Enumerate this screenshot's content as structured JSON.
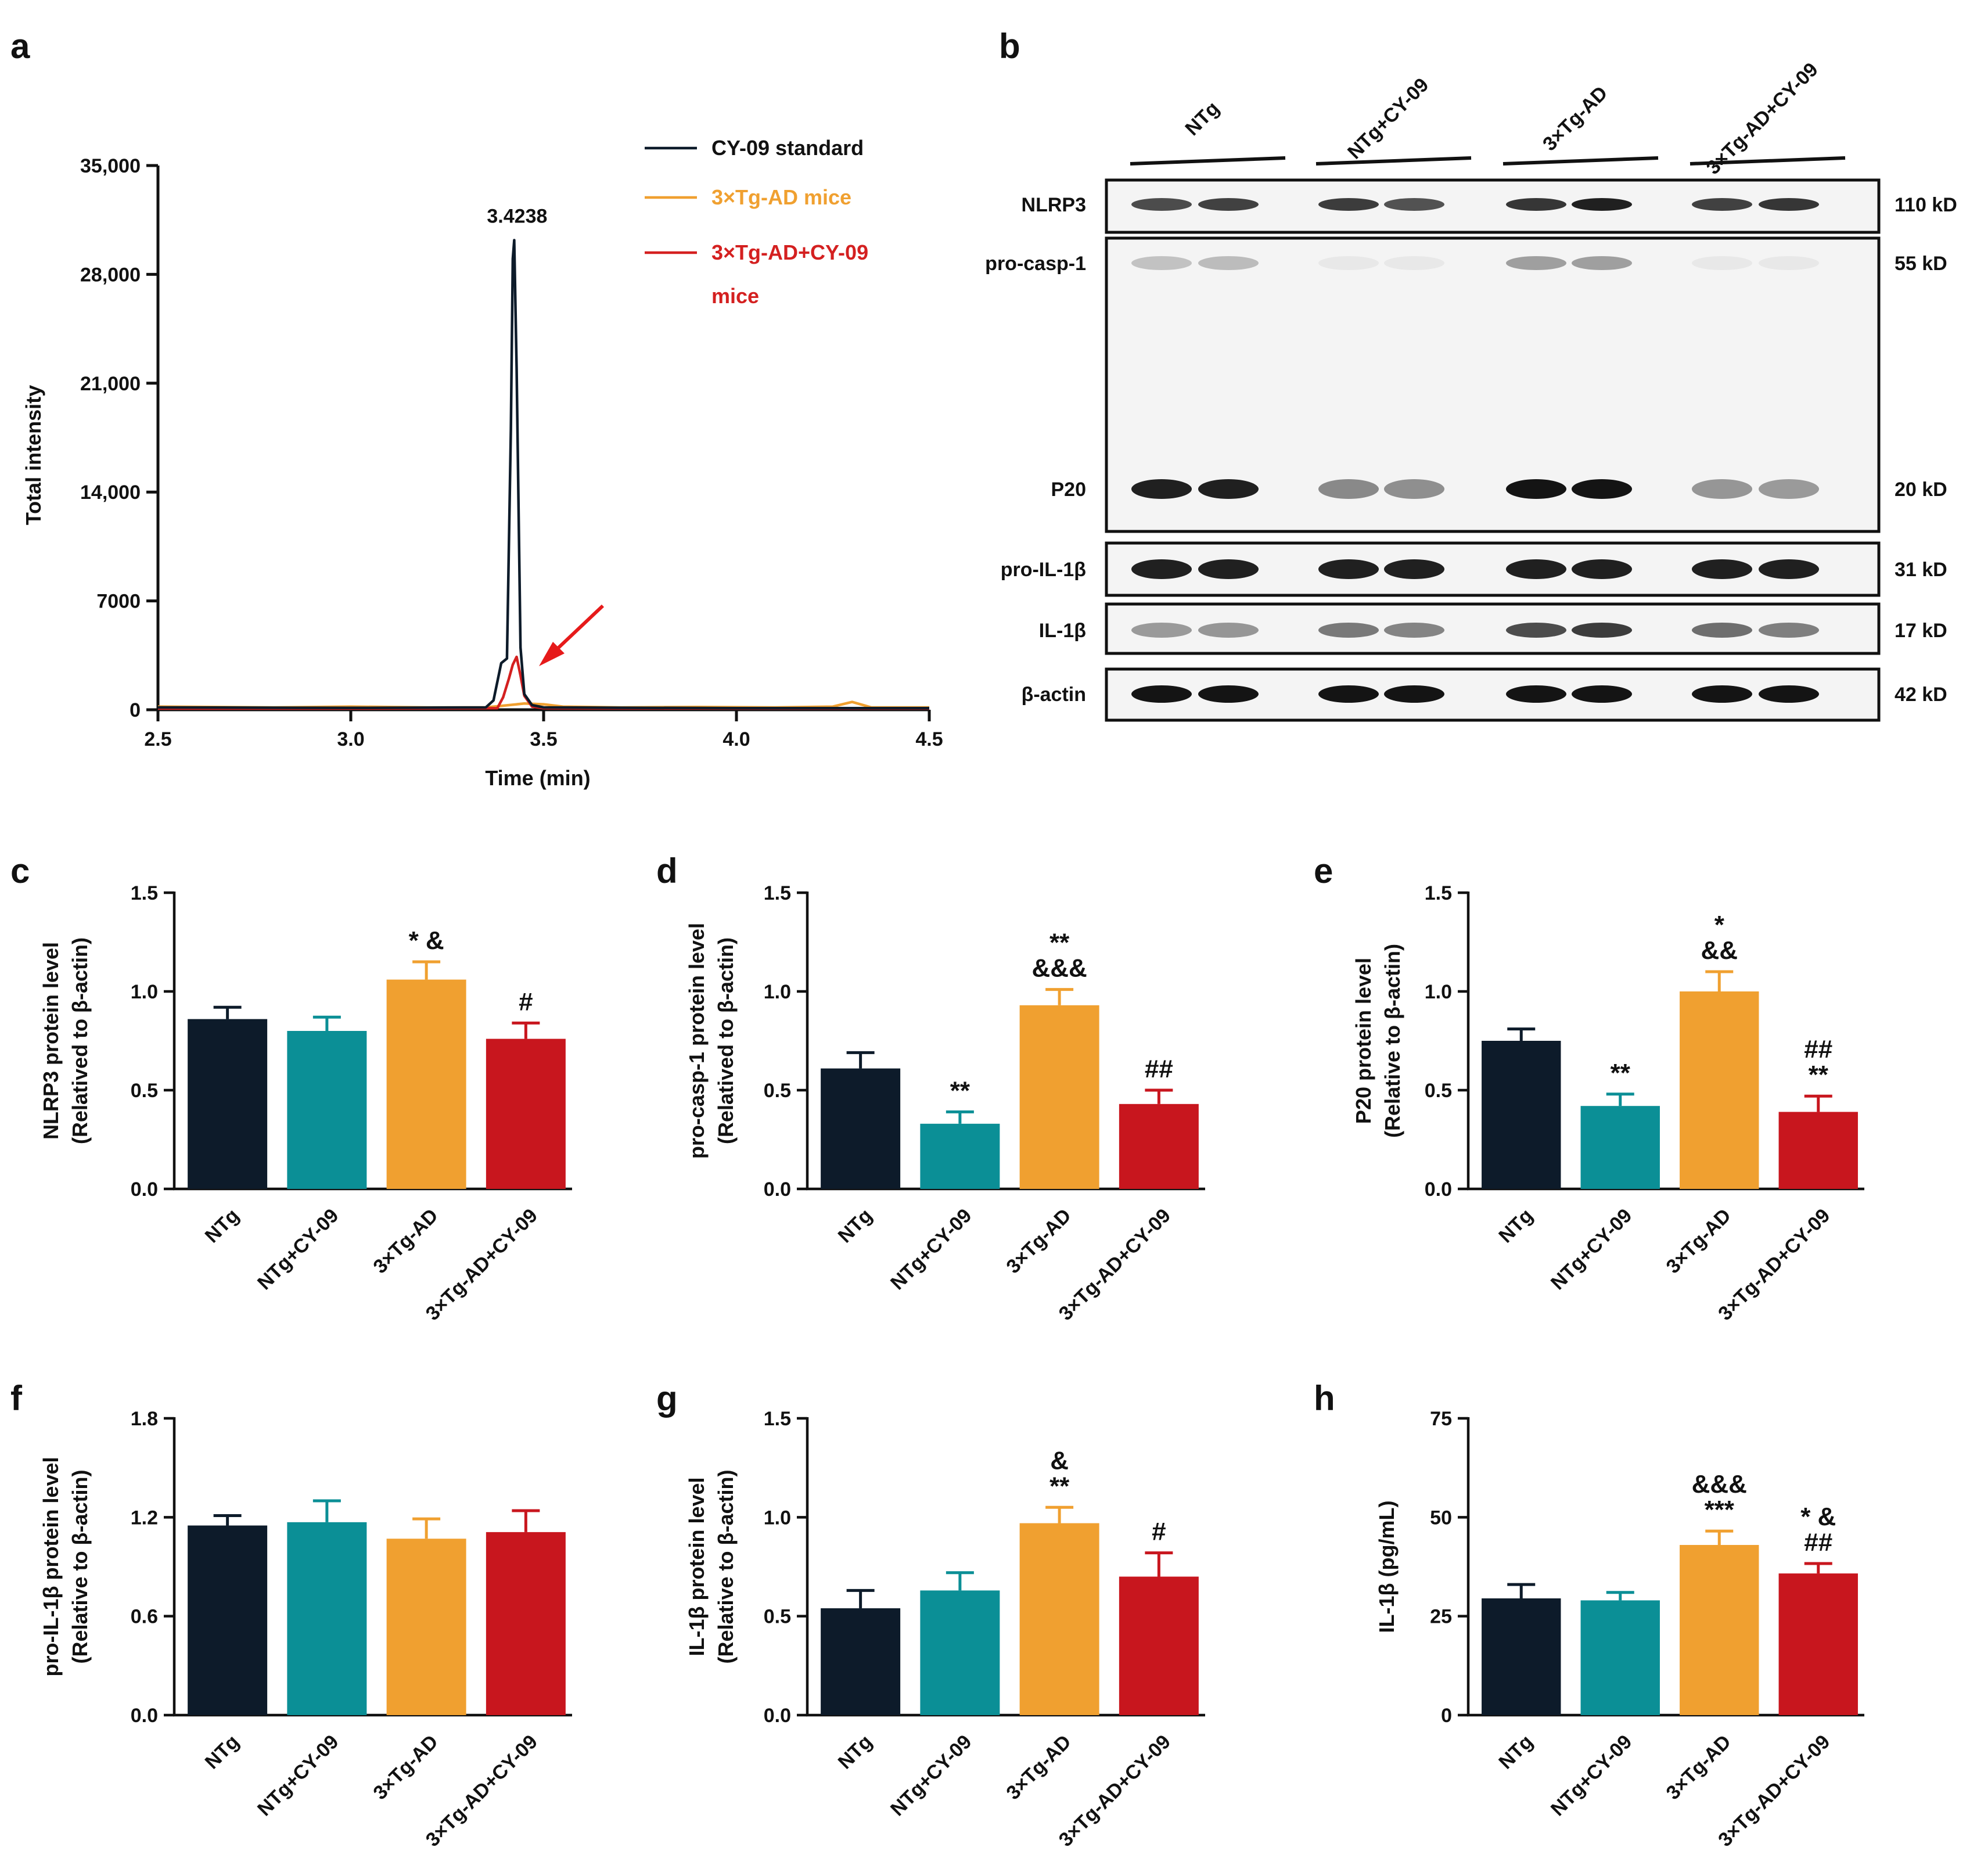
{
  "colors": {
    "ntg": "#0d1b2a",
    "ntg_cy09": "#0b8f96",
    "tg_ad": "#f0a030",
    "tg_ad_cy09": "#c8161e",
    "chrom_standard": "#0d1b2a",
    "chrom_tg_ad": "#f0a030",
    "chrom_tg_ad_cy09": "#d42020",
    "arrow": "#e61a1a"
  },
  "panels": {
    "a": "a",
    "b": "b",
    "c": "c",
    "d": "d",
    "e": "e",
    "f": "f",
    "g": "g",
    "h": "h"
  },
  "western_blot": {
    "lanes": [
      "NTg",
      "NTg+CY-09",
      "3×Tg-AD",
      "3×Tg-AD+CY-09"
    ],
    "bands": [
      {
        "name": "NLRP3",
        "kd": "110 kD"
      },
      {
        "name": "pro-casp-1",
        "kd": "55 kD"
      },
      {
        "name": "P20",
        "kd": "20 kD"
      },
      {
        "name": "pro-IL-1β",
        "kd": "31 kD"
      },
      {
        "name": "IL-1β",
        "kd": "17 kD"
      },
      {
        "name": "β-actin",
        "kd": "42 kD"
      }
    ]
  },
  "chart_data": [
    {
      "panel": "a",
      "type": "line",
      "title": "",
      "xlabel": "Time (min)",
      "ylabel": "Total intensity",
      "xlim": [
        2.5,
        4.5
      ],
      "ylim": [
        0,
        35000
      ],
      "xticks": [
        2.5,
        3.0,
        3.5,
        4.0,
        4.5
      ],
      "xtick_labels": [
        "2.5",
        "3.0",
        "3.5",
        "4.0",
        "4.5"
      ],
      "yticks": [
        0,
        7000,
        14000,
        21000,
        28000,
        35000
      ],
      "ytick_labels": [
        "0",
        "7000",
        "14,000",
        "21,000",
        "28,000",
        "35,000"
      ],
      "annotation": "3.4238",
      "legend": [
        "CY-09 standard",
        "3×Tg-AD mice",
        "3×Tg-AD+CY-09",
        "mice"
      ],
      "series": [
        {
          "name": "CY-09 standard",
          "x": [
            2.5,
            3.0,
            3.35,
            3.37,
            3.39,
            3.405,
            3.415,
            3.42,
            3.4238,
            3.43,
            3.44,
            3.45,
            3.47,
            3.5,
            4.0,
            4.5
          ],
          "y": [
            150,
            120,
            150,
            600,
            3000,
            3300,
            18000,
            29000,
            30200,
            22000,
            4000,
            1000,
            300,
            150,
            100,
            100
          ]
        },
        {
          "name": "3×Tg-AD mice",
          "x": [
            2.5,
            2.8,
            3.0,
            3.2,
            3.35,
            3.45,
            3.5,
            3.55,
            3.7,
            3.9,
            4.1,
            4.25,
            4.3,
            4.35,
            4.5
          ],
          "y": [
            200,
            150,
            200,
            150,
            150,
            400,
            350,
            200,
            150,
            180,
            150,
            200,
            500,
            150,
            150
          ]
        },
        {
          "name": "3×Tg-AD+CY-09 mice",
          "x": [
            2.5,
            3.0,
            3.38,
            3.395,
            3.41,
            3.42,
            3.43,
            3.44,
            3.45,
            3.47,
            3.5,
            4.0,
            4.5
          ],
          "y": [
            80,
            80,
            100,
            800,
            2000,
            2900,
            3400,
            2200,
            900,
            200,
            100,
            80,
            80
          ]
        }
      ]
    },
    {
      "panel": "c",
      "type": "bar",
      "categories": [
        "NTg",
        "NTg+CY-09",
        "3×Tg-AD",
        "3×Tg-AD+CY-09"
      ],
      "values": [
        0.86,
        0.8,
        1.06,
        0.76
      ],
      "errors": [
        0.06,
        0.07,
        0.09,
        0.08
      ],
      "significance": [
        [],
        [],
        [
          "* &"
        ],
        [
          "#"
        ]
      ],
      "ylabel": [
        "NLRP3 protein level",
        "(Relatived to β-actin)"
      ],
      "ylim": [
        0,
        1.5
      ],
      "yticks": [
        0.0,
        0.5,
        1.0,
        1.5
      ],
      "ytick_labels": [
        "0.0",
        "0.5",
        "1.0",
        "1.5"
      ]
    },
    {
      "panel": "d",
      "type": "bar",
      "categories": [
        "NTg",
        "NTg+CY-09",
        "3×Tg-AD",
        "3×Tg-AD+CY-09"
      ],
      "values": [
        0.61,
        0.33,
        0.93,
        0.43
      ],
      "errors": [
        0.08,
        0.06,
        0.08,
        0.07
      ],
      "significance": [
        [],
        [
          "**"
        ],
        [
          "&&&",
          "**"
        ],
        [
          "##"
        ]
      ],
      "ylabel": [
        "pro-casp-1 protein level",
        "(Relatived to β-actin)"
      ],
      "ylim": [
        0,
        1.5
      ],
      "yticks": [
        0.0,
        0.5,
        1.0,
        1.5
      ],
      "ytick_labels": [
        "0.0",
        "0.5",
        "1.0",
        "1.5"
      ]
    },
    {
      "panel": "e",
      "type": "bar",
      "categories": [
        "NTg",
        "NTg+CY-09",
        "3×Tg-AD",
        "3×Tg-AD+CY-09"
      ],
      "values": [
        0.75,
        0.42,
        1.0,
        0.39
      ],
      "errors": [
        0.06,
        0.06,
        0.1,
        0.08
      ],
      "significance": [
        [],
        [
          "**"
        ],
        [
          "&&",
          "*"
        ],
        [
          "**",
          "##"
        ]
      ],
      "ylabel": [
        "P20 protein level",
        "(Relative to β-actin)"
      ],
      "ylim": [
        0,
        1.5
      ],
      "yticks": [
        0.0,
        0.5,
        1.0,
        1.5
      ],
      "ytick_labels": [
        "0.0",
        "0.5",
        "1.0",
        "1.5"
      ]
    },
    {
      "panel": "f",
      "type": "bar",
      "categories": [
        "NTg",
        "NTg+CY-09",
        "3×Tg-AD",
        "3×Tg-AD+CY-09"
      ],
      "values": [
        1.15,
        1.17,
        1.07,
        1.11
      ],
      "errors": [
        0.06,
        0.13,
        0.12,
        0.13
      ],
      "significance": [
        [],
        [],
        [],
        []
      ],
      "ylabel": [
        "pro-IL-1β protein level",
        "(Relative to β-actin)"
      ],
      "ylim": [
        0,
        1.8
      ],
      "yticks": [
        0.0,
        0.6,
        1.2,
        1.8
      ],
      "ytick_labels": [
        "0.0",
        "0.6",
        "1.2",
        "1.8"
      ]
    },
    {
      "panel": "g",
      "type": "bar",
      "categories": [
        "NTg",
        "NTg+CY-09",
        "3×Tg-AD",
        "3×Tg-AD+CY-09"
      ],
      "values": [
        0.54,
        0.63,
        0.97,
        0.7
      ],
      "errors": [
        0.09,
        0.09,
        0.08,
        0.12
      ],
      "significance": [
        [],
        [],
        [
          "**",
          "&"
        ],
        [
          "#"
        ]
      ],
      "ylabel": [
        "IL-1β protein level",
        "(Relative to β-actin)"
      ],
      "ylim": [
        0,
        1.5
      ],
      "yticks": [
        0.0,
        0.5,
        1.0,
        1.5
      ],
      "ytick_labels": [
        "0.0",
        "0.5",
        "1.0",
        "1.5"
      ]
    },
    {
      "panel": "h",
      "type": "bar",
      "categories": [
        "NTg",
        "NTg+CY-09",
        "3×Tg-AD",
        "3×Tg-AD+CY-09"
      ],
      "values": [
        29.5,
        29.0,
        43.0,
        35.8
      ],
      "errors": [
        3.5,
        2.0,
        3.5,
        2.5
      ],
      "significance": [
        [],
        [],
        [
          "***",
          "&&&"
        ],
        [
          "##",
          "* &"
        ]
      ],
      "ylabel": [
        "IL-1β (pg/mL)"
      ],
      "ylim": [
        0,
        75
      ],
      "yticks": [
        0,
        25,
        50,
        75
      ],
      "ytick_labels": [
        "0",
        "25",
        "50",
        "75"
      ]
    }
  ]
}
